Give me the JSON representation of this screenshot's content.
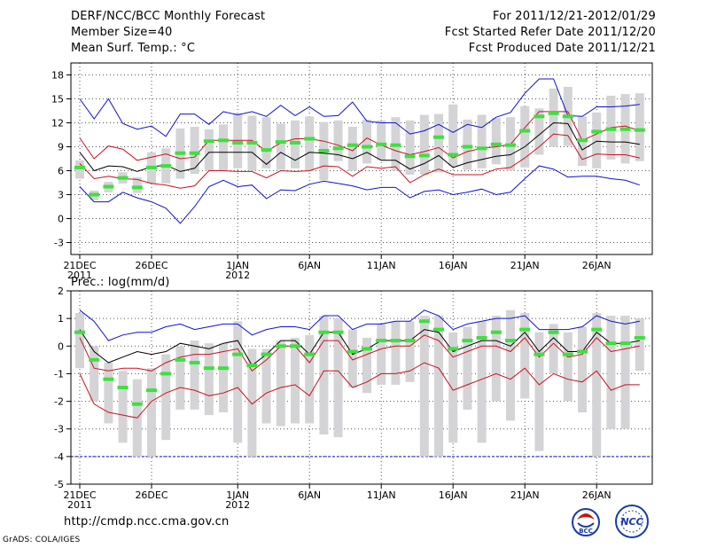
{
  "header": {
    "title": "DERF/NCC/BCC Monthly Forecast",
    "member_size": "Member Size=40",
    "forecast_period": "For 2011/12/21-2012/01/29",
    "fcst_started": "Fcst Started Refer Date 2011/12/20",
    "fcst_produced": "Fcst Produced Date 2011/12/21"
  },
  "footer": {
    "url": "http://cmdp.ncc.cma.gov.cn",
    "credit": "GrADS: COLA/IGES",
    "logo_left_text": "BCC",
    "logo_right_text": "NCC"
  },
  "x_axis": {
    "ticks": [
      {
        "day": 1,
        "label": "21DEC",
        "sublabel": "2011"
      },
      {
        "day": 6,
        "label": "26DEC",
        "sublabel": ""
      },
      {
        "day": 12,
        "label": "1JAN",
        "sublabel": "2012"
      },
      {
        "day": 17,
        "label": "6JAN",
        "sublabel": ""
      },
      {
        "day": 22,
        "label": "11JAN",
        "sublabel": ""
      },
      {
        "day": 27,
        "label": "16JAN",
        "sublabel": ""
      },
      {
        "day": 32,
        "label": "21JAN",
        "sublabel": ""
      },
      {
        "day": 37,
        "label": "26JAN",
        "sublabel": ""
      }
    ]
  },
  "colors": {
    "box": "#d4d4d6",
    "median": "#3ee03e",
    "mean": "#000000",
    "inner": "#cc1020",
    "outer": "#1010d8",
    "grid": "#555555"
  },
  "chart_data": [
    {
      "type": "box",
      "title": "Mean Surf. Temp.: °C",
      "xlabel": "",
      "ylabel": "",
      "ylim": [
        -4.5,
        19.5
      ],
      "yticks": [
        -3,
        0,
        3,
        6,
        9,
        12,
        15,
        18
      ],
      "x": [
        1,
        2,
        3,
        4,
        5,
        6,
        7,
        8,
        9,
        10,
        11,
        12,
        13,
        14,
        15,
        16,
        17,
        18,
        19,
        20,
        21,
        22,
        23,
        24,
        25,
        26,
        27,
        28,
        29,
        30,
        31,
        32,
        33,
        34,
        35,
        36,
        37,
        38,
        39,
        40
      ],
      "box_low": [
        5.0,
        2.3,
        3.3,
        4.4,
        3.2,
        4.4,
        4.4,
        5.0,
        5.6,
        6.0,
        6.0,
        6.3,
        6.0,
        6.3,
        6.1,
        6.3,
        5.9,
        4.8,
        7.2,
        6.0,
        6.9,
        7.3,
        6.0,
        5.5,
        5.5,
        5.8,
        6.6,
        6.1,
        6.3,
        6.8,
        6.0,
        6.4,
        8.0,
        9.0,
        9.1,
        6.6,
        6.3,
        7.4,
        6.9,
        7.2
      ],
      "box_high": [
        7.3,
        3.5,
        4.6,
        5.8,
        5.2,
        8.3,
        8.8,
        11.3,
        11.5,
        11.2,
        11.8,
        13.2,
        12.9,
        12.7,
        11.9,
        12.3,
        12.8,
        12.1,
        12.3,
        11.5,
        12.4,
        12.3,
        12.7,
        12.3,
        13.0,
        13.1,
        14.3,
        12.4,
        13.0,
        12.6,
        12.7,
        14.1,
        13.8,
        16.3,
        16.5,
        12.8,
        13.3,
        15.4,
        15.6,
        15.7
      ],
      "median": [
        6.4,
        3.0,
        4.0,
        5.1,
        3.9,
        6.4,
        6.6,
        8.2,
        8.2,
        9.7,
        9.8,
        9.5,
        9.5,
        8.6,
        9.6,
        9.5,
        10.0,
        8.5,
        8.8,
        9.2,
        9.0,
        9.3,
        9.2,
        7.8,
        7.9,
        10.2,
        8.0,
        9.0,
        8.8,
        9.3,
        9.2,
        11.0,
        12.8,
        13.2,
        12.8,
        9.8,
        10.9,
        11.2,
        11.2,
        11.1
      ],
      "mean": [
        8.3,
        6.0,
        6.6,
        6.5,
        5.9,
        6.5,
        6.7,
        5.9,
        6.3,
        8.3,
        8.3,
        8.3,
        8.3,
        6.8,
        8.3,
        7.3,
        8.3,
        8.2,
        8.0,
        7.5,
        8.3,
        7.3,
        7.3,
        6.2,
        6.9,
        7.9,
        6.4,
        7.0,
        7.4,
        7.8,
        8.0,
        9.0,
        10.5,
        12.0,
        11.9,
        8.6,
        9.7,
        9.6,
        9.6,
        9.3
      ],
      "inner_lo": [
        6.9,
        5.0,
        5.3,
        5.0,
        4.9,
        4.4,
        4.2,
        3.8,
        4.1,
        6.0,
        6.0,
        5.9,
        5.9,
        5.1,
        6.0,
        5.9,
        6.0,
        6.6,
        6.5,
        5.3,
        6.5,
        6.3,
        6.5,
        4.5,
        5.5,
        6.2,
        5.5,
        5.5,
        5.5,
        6.2,
        6.4,
        7.6,
        9.0,
        10.6,
        10.4,
        7.4,
        8.1,
        8.0,
        8.0,
        7.6
      ],
      "inner_hi": [
        10.1,
        7.5,
        9.1,
        8.7,
        7.3,
        7.7,
        8.1,
        7.5,
        7.7,
        9.8,
        9.8,
        9.8,
        9.8,
        8.4,
        9.5,
        10.0,
        10.0,
        9.7,
        9.2,
        8.5,
        10.1,
        9.2,
        8.5,
        8.0,
        8.4,
        8.9,
        7.6,
        8.4,
        8.8,
        9.0,
        9.3,
        11.4,
        13.4,
        13.4,
        13.4,
        9.8,
        10.6,
        11.4,
        11.6,
        11.0
      ],
      "outer_lo": [
        4.0,
        2.1,
        2.1,
        3.3,
        2.6,
        2.1,
        1.3,
        -0.6,
        1.5,
        4.0,
        4.8,
        4.0,
        4.2,
        2.5,
        3.6,
        3.5,
        4.3,
        4.7,
        4.4,
        4.1,
        3.6,
        3.9,
        3.9,
        2.6,
        3.4,
        3.6,
        3.0,
        3.3,
        3.7,
        3.0,
        3.3,
        5.0,
        6.6,
        6.2,
        5.2,
        5.3,
        5.3,
        5.0,
        4.8,
        4.2
      ],
      "outer_hi": [
        15.0,
        12.5,
        15.0,
        11.9,
        11.2,
        11.6,
        10.3,
        13.1,
        13.1,
        11.8,
        13.4,
        13.0,
        13.4,
        12.8,
        14.2,
        12.9,
        14.0,
        12.8,
        12.9,
        14.6,
        12.2,
        12.0,
        12.0,
        10.6,
        11.0,
        11.8,
        10.8,
        11.8,
        11.4,
        12.7,
        13.3,
        15.7,
        17.5,
        17.5,
        12.9,
        12.8,
        14.0,
        14.0,
        14.1,
        14.3
      ]
    },
    {
      "type": "box",
      "title": "Prec.: log(mm/d)",
      "xlabel": "",
      "ylabel": "",
      "ylim": [
        -5,
        2
      ],
      "yticks": [
        -5,
        -4,
        -3,
        -2,
        -1,
        0,
        1,
        2
      ],
      "baseline": -4,
      "x": [
        1,
        2,
        3,
        4,
        5,
        6,
        7,
        8,
        9,
        10,
        11,
        12,
        13,
        14,
        15,
        16,
        17,
        18,
        19,
        20,
        21,
        22,
        23,
        24,
        25,
        26,
        27,
        28,
        29,
        30,
        31,
        32,
        33,
        34,
        35,
        36,
        37,
        38,
        39,
        40
      ],
      "box_low": [
        -0.8,
        -2.0,
        -2.8,
        -3.5,
        -4.0,
        -4.0,
        -3.4,
        -2.3,
        -2.3,
        -2.5,
        -2.4,
        -3.5,
        -4.0,
        -2.8,
        -2.9,
        -2.8,
        -2.8,
        -3.2,
        -3.3,
        -1.5,
        -1.7,
        -1.4,
        -1.4,
        -1.3,
        -4.0,
        -4.0,
        -3.5,
        -2.3,
        -3.5,
        -2.0,
        -2.7,
        -1.9,
        -3.8,
        -1.0,
        -2.0,
        -2.4,
        -4.0,
        -3.0,
        -3.0,
        -0.9
      ],
      "box_high": [
        1.2,
        0.0,
        -0.6,
        -0.9,
        -1.2,
        -0.8,
        -0.3,
        0.0,
        0.2,
        0.1,
        0.1,
        0.9,
        -0.1,
        -0.1,
        0.2,
        0.3,
        0.4,
        1.1,
        1.0,
        0.6,
        0.3,
        0.8,
        0.9,
        0.9,
        1.1,
        1.1,
        0.5,
        0.7,
        0.9,
        1.1,
        1.3,
        1.2,
        0.5,
        0.8,
        0.5,
        0.7,
        1.2,
        1.1,
        1.1,
        1.0
      ],
      "median": [
        0.5,
        -0.5,
        -1.2,
        -1.5,
        -2.1,
        -1.6,
        -1.0,
        -0.5,
        -0.6,
        -0.8,
        -0.8,
        -0.3,
        -0.7,
        -0.3,
        0.0,
        0.0,
        -0.3,
        0.5,
        0.5,
        -0.2,
        -0.1,
        0.2,
        0.2,
        0.2,
        0.9,
        0.6,
        -0.1,
        0.2,
        0.3,
        0.5,
        0.2,
        0.6,
        -0.3,
        0.5,
        -0.3,
        -0.2,
        0.6,
        0.1,
        0.1,
        0.3
      ],
      "mean": [
        0.6,
        -0.2,
        -0.6,
        -0.4,
        -0.2,
        -0.3,
        -0.2,
        0.1,
        0.0,
        -0.1,
        0.1,
        0.2,
        -0.7,
        -0.3,
        0.2,
        0.2,
        -0.3,
        0.5,
        0.5,
        -0.3,
        -0.1,
        0.2,
        0.2,
        0.2,
        0.6,
        0.5,
        -0.2,
        0.0,
        0.2,
        0.2,
        0.0,
        0.5,
        -0.2,
        0.3,
        -0.2,
        -0.2,
        0.5,
        0.1,
        0.1,
        0.2
      ],
      "inner_lo": [
        -1.0,
        -2.1,
        -2.4,
        -2.5,
        -2.6,
        -2.0,
        -1.7,
        -1.5,
        -1.6,
        -1.8,
        -1.7,
        -1.5,
        -2.1,
        -1.7,
        -1.5,
        -1.4,
        -1.8,
        -0.9,
        -0.9,
        -1.5,
        -1.3,
        -1.0,
        -1.0,
        -0.9,
        -0.6,
        -0.8,
        -1.6,
        -1.4,
        -1.2,
        -1.0,
        -1.2,
        -0.8,
        -1.4,
        -1.0,
        -1.2,
        -1.3,
        -0.9,
        -1.6,
        -1.4,
        -1.4
      ],
      "inner_hi": [
        0.3,
        -0.8,
        -0.9,
        -0.8,
        -0.8,
        -0.9,
        -0.6,
        -0.4,
        -0.3,
        -0.3,
        -0.2,
        -0.1,
        -0.9,
        -0.5,
        0.0,
        0.0,
        -0.6,
        0.2,
        0.2,
        -0.5,
        -0.3,
        -0.1,
        0.0,
        0.0,
        0.4,
        0.2,
        -0.4,
        -0.2,
        0.0,
        0.0,
        -0.2,
        0.3,
        -0.4,
        0.1,
        -0.4,
        -0.3,
        0.3,
        -0.2,
        -0.1,
        0.0
      ],
      "outer_lo": [
        -4.0,
        -4.0,
        -4.0,
        -4.0,
        -4.0,
        -4.0,
        -4.0,
        -4.0,
        -4.0,
        -4.0,
        -4.0,
        -4.0,
        -4.0,
        -4.0,
        -4.0,
        -4.0,
        -4.0,
        -4.0,
        -4.0,
        -4.0,
        -4.0,
        -4.0,
        -4.0,
        -4.0,
        -4.0,
        -4.0,
        -4.0,
        -4.0,
        -4.0,
        -4.0,
        -4.0,
        -4.0,
        -4.0,
        -4.0,
        -4.0,
        -4.0,
        -4.0,
        -4.0,
        -4.0,
        -4.0
      ],
      "outer_hi": [
        1.3,
        0.9,
        0.2,
        0.4,
        0.5,
        0.5,
        0.7,
        0.8,
        0.6,
        0.7,
        0.8,
        0.8,
        0.4,
        0.6,
        0.7,
        0.7,
        0.6,
        1.1,
        1.1,
        0.6,
        0.8,
        0.8,
        0.9,
        0.9,
        1.3,
        1.1,
        0.6,
        0.8,
        0.9,
        1.0,
        1.0,
        1.1,
        0.6,
        0.6,
        0.6,
        0.7,
        1.1,
        0.9,
        0.8,
        0.9
      ]
    }
  ]
}
